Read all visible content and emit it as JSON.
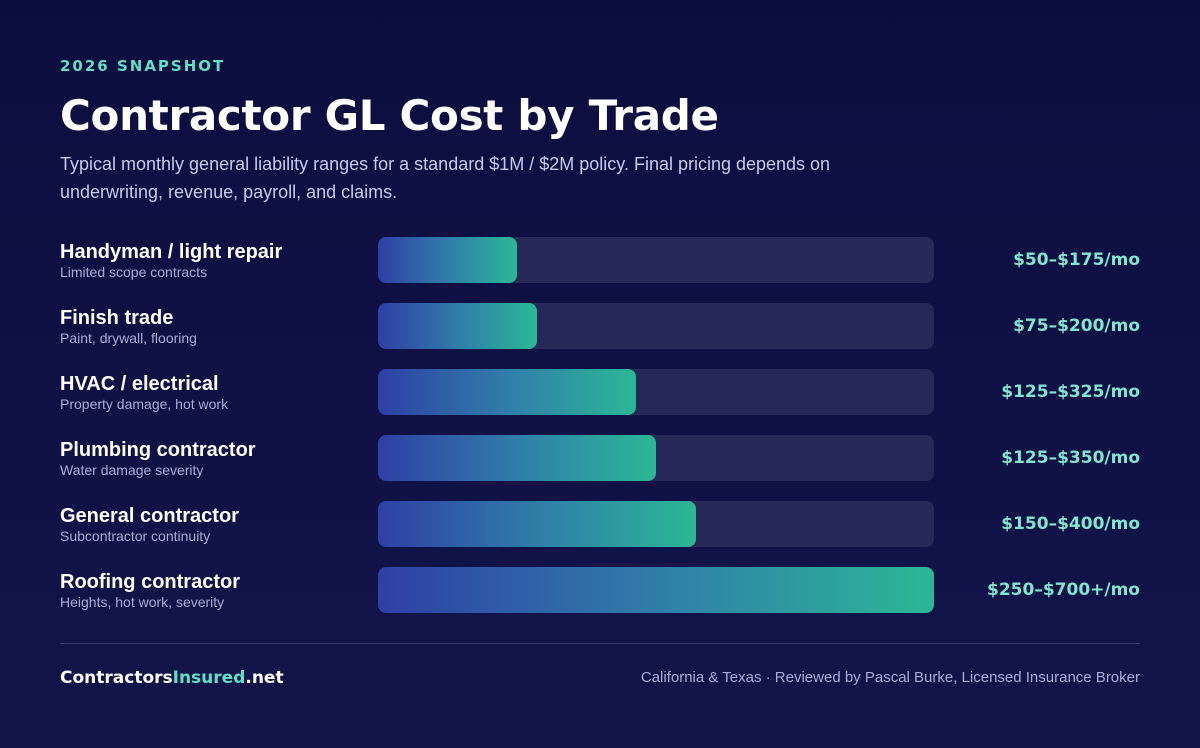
{
  "header": {
    "eyebrow": "2026 SNAPSHOT",
    "title": "Contractor GL Cost by Trade",
    "subtitle": "Typical monthly general liability ranges for a standard $1M / $2M policy. Final pricing depends on underwriting, revenue, payroll, and claims."
  },
  "colors": {
    "background": "#0c0d3f",
    "accent": "#5fe0c3",
    "track": "#262858",
    "bar_start": "#2f3fa6",
    "bar_end": "#2bb795"
  },
  "chart_data": {
    "type": "bar",
    "orientation": "horizontal",
    "categories": [
      "Handyman / light repair",
      "Finish trade",
      "HVAC / electrical",
      "Plumbing contractor",
      "General contractor",
      "Roofing contractor"
    ],
    "descriptions": [
      "Limited scope contracts",
      "Paint, drywall, flooring",
      "Property damage, hot work",
      "Water damage severity",
      "Subcontractor continuity",
      "Heights, hot work, severity"
    ],
    "value_labels": [
      "$50–$175/mo",
      "$75–$200/mo",
      "$125–$325/mo",
      "$125–$350/mo",
      "$150–$400/mo",
      "$250–$700+/mo"
    ],
    "values": [
      175,
      200,
      325,
      350,
      400,
      700
    ],
    "xlim": [
      0,
      700
    ],
    "grid": false
  },
  "footer": {
    "brand_main": "Contractors",
    "brand_accent": "Insured",
    "brand_suffix": ".net",
    "note": "California & Texas · Reviewed by Pascal Burke, Licensed Insurance Broker"
  }
}
